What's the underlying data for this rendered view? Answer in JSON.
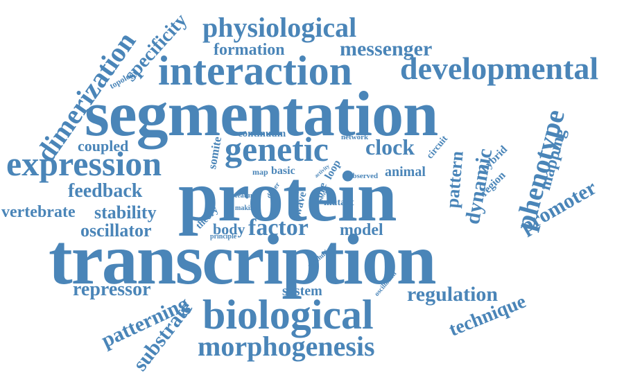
{
  "cloud": {
    "color": "#4a85b8",
    "words": {
      "transcription": "transcription",
      "segmentation": "segmentation",
      "protein": "protein",
      "interaction": "interaction",
      "biological": "biological",
      "expression": "expression",
      "developmental": "developmental",
      "genetic": "genetic",
      "physiological": "physiological",
      "morphogenesis": "morphogenesis",
      "dimerization": "dimerization",
      "phenotype": "phenotype",
      "clock": "clock",
      "messenger": "messenger",
      "formation": "formation",
      "specificity": "specificity",
      "topology": "topology",
      "feedback": "feedback",
      "vertebrate": "vertebrate",
      "stability": "stability",
      "oscillator": "oscillator",
      "coupled": "coupled",
      "continuum": "continuum",
      "somite": "somite",
      "map": "map",
      "basic": "basic",
      "network": "network",
      "activity": "activity",
      "loop": "loop",
      "observed": "observed",
      "animal": "animal",
      "circuit": "circuit",
      "pattern": "pattern",
      "dynamic": "dynamic",
      "hybrid": "hybrid",
      "region": "region",
      "mapping": "mapping",
      "promoter": "promoter",
      "feature": "feature",
      "making": "making",
      "dimer": "dimer",
      "core": "core",
      "wave": "wave",
      "gpu": "gpu",
      "novel": "novel",
      "mutant": "mutant",
      "theory": "theory",
      "body": "body",
      "factor": "factor",
      "principle": "principle",
      "model": "model",
      "rhythmic": "rhythmic",
      "repressor": "repressor",
      "system": "system",
      "oscillation": "oscillation",
      "regulation": "regulation",
      "patterning": "patterning",
      "substrate": "substrate",
      "technique": "technique"
    }
  }
}
